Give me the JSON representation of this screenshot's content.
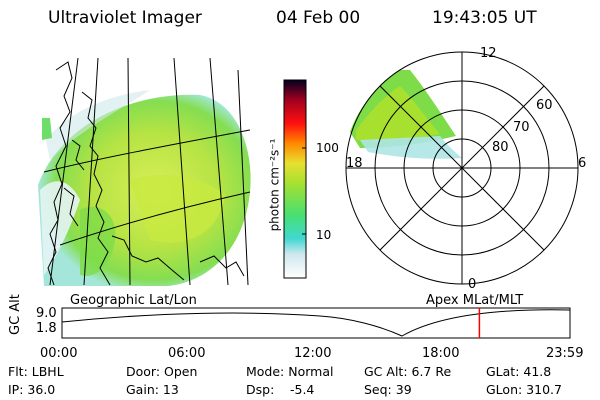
{
  "header": {
    "title": "Ultraviolet Imager",
    "date": "04 Feb 00",
    "time": "19:43:05 UT"
  },
  "colorbar": {
    "ticks": [
      "100",
      "10"
    ],
    "label": "photon cm⁻²s⁻¹"
  },
  "polar": {
    "mlt_labels": [
      "12",
      "18",
      "6",
      "0"
    ],
    "lat_labels": [
      "60",
      "70",
      "80"
    ]
  },
  "timeline": {
    "left_label": "Geographic Lat/Lon",
    "right_label": "Apex  MLat/MLT",
    "axis_title": "GC Alt",
    "alt_ticks": [
      "9.0",
      "1.8"
    ],
    "time_ticks": [
      "00:00",
      "06:00",
      "12:00",
      "18:00",
      "23:59"
    ],
    "current_time_hours": 19.72
  },
  "params": {
    "flt": "Flt: LBHL",
    "ip": "IP: 36.0",
    "door": "Door: Open",
    "gain": "Gain: 13",
    "mode": "Mode: Normal",
    "dsp_label": "Dsp:",
    "dsp_value": "-5.4",
    "gc_alt": "GC Alt: 6.7 Re",
    "seq": "Seq: 39",
    "glat": "GLat:  41.8",
    "glon": "GLon: 310.7"
  },
  "colors": {
    "accent_line": "#ff0000",
    "aurora_green": "#a8e030",
    "aurora_cyan": "#40d8d0"
  }
}
